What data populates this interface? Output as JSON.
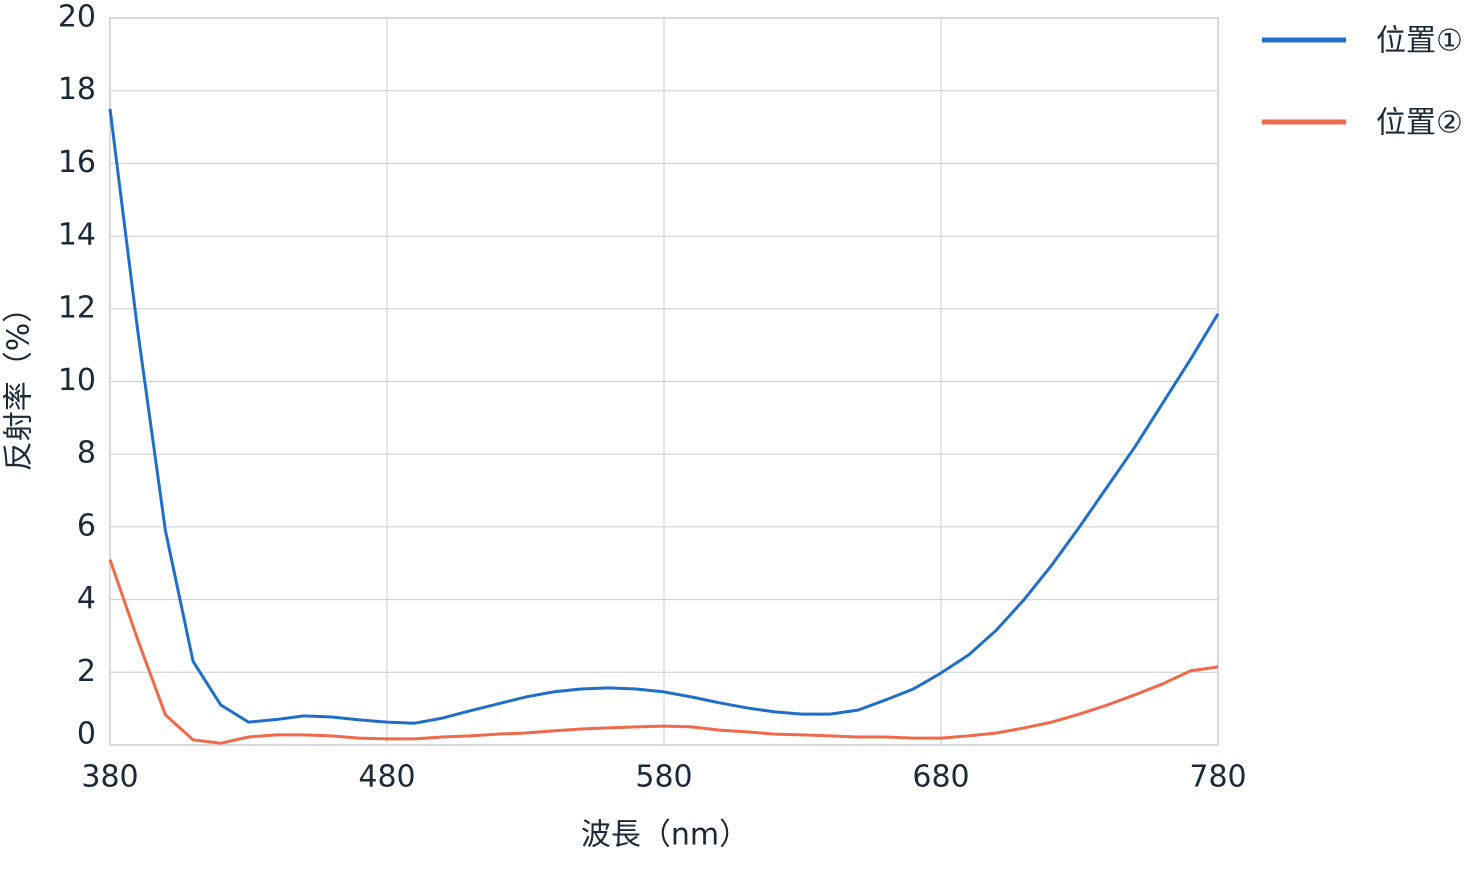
{
  "chart_data": {
    "type": "line",
    "x": [
      380,
      390,
      400,
      410,
      420,
      430,
      440,
      450,
      460,
      470,
      480,
      490,
      500,
      510,
      520,
      530,
      540,
      550,
      560,
      570,
      580,
      590,
      600,
      610,
      620,
      630,
      640,
      650,
      660,
      670,
      680,
      690,
      700,
      710,
      720,
      730,
      740,
      750,
      760,
      770,
      780
    ],
    "series": [
      {
        "name": "位置①",
        "color": "#1f6fc8",
        "values": [
          17.5,
          11.4,
          5.9,
          2.3,
          1.1,
          0.63,
          0.7,
          0.8,
          0.77,
          0.69,
          0.63,
          0.6,
          0.74,
          0.94,
          1.13,
          1.32,
          1.46,
          1.54,
          1.57,
          1.54,
          1.46,
          1.32,
          1.16,
          1.02,
          0.91,
          0.85,
          0.85,
          0.96,
          1.24,
          1.54,
          1.98,
          2.48,
          3.16,
          4.0,
          4.95,
          6.0,
          7.1,
          8.2,
          9.4,
          10.6,
          11.86
        ]
      },
      {
        "name": "位置②",
        "color": "#f0694a",
        "values": [
          5.1,
          2.9,
          0.83,
          0.14,
          0.05,
          0.22,
          0.28,
          0.28,
          0.25,
          0.19,
          0.17,
          0.17,
          0.22,
          0.25,
          0.3,
          0.33,
          0.39,
          0.44,
          0.47,
          0.5,
          0.52,
          0.5,
          0.41,
          0.36,
          0.3,
          0.28,
          0.25,
          0.22,
          0.22,
          0.19,
          0.19,
          0.25,
          0.33,
          0.47,
          0.63,
          0.85,
          1.1,
          1.38,
          1.68,
          2.04,
          2.15
        ]
      }
    ],
    "xlabel": "波長（nm）",
    "ylabel": "反射率（%）",
    "xlim": [
      380,
      780
    ],
    "xticks": [
      380,
      480,
      580,
      680,
      780
    ],
    "ylim": [
      0,
      20
    ],
    "yticks": [
      0,
      2,
      4,
      6,
      8,
      10,
      12,
      14,
      16,
      18,
      20
    ],
    "grid": true,
    "legend": "right"
  }
}
